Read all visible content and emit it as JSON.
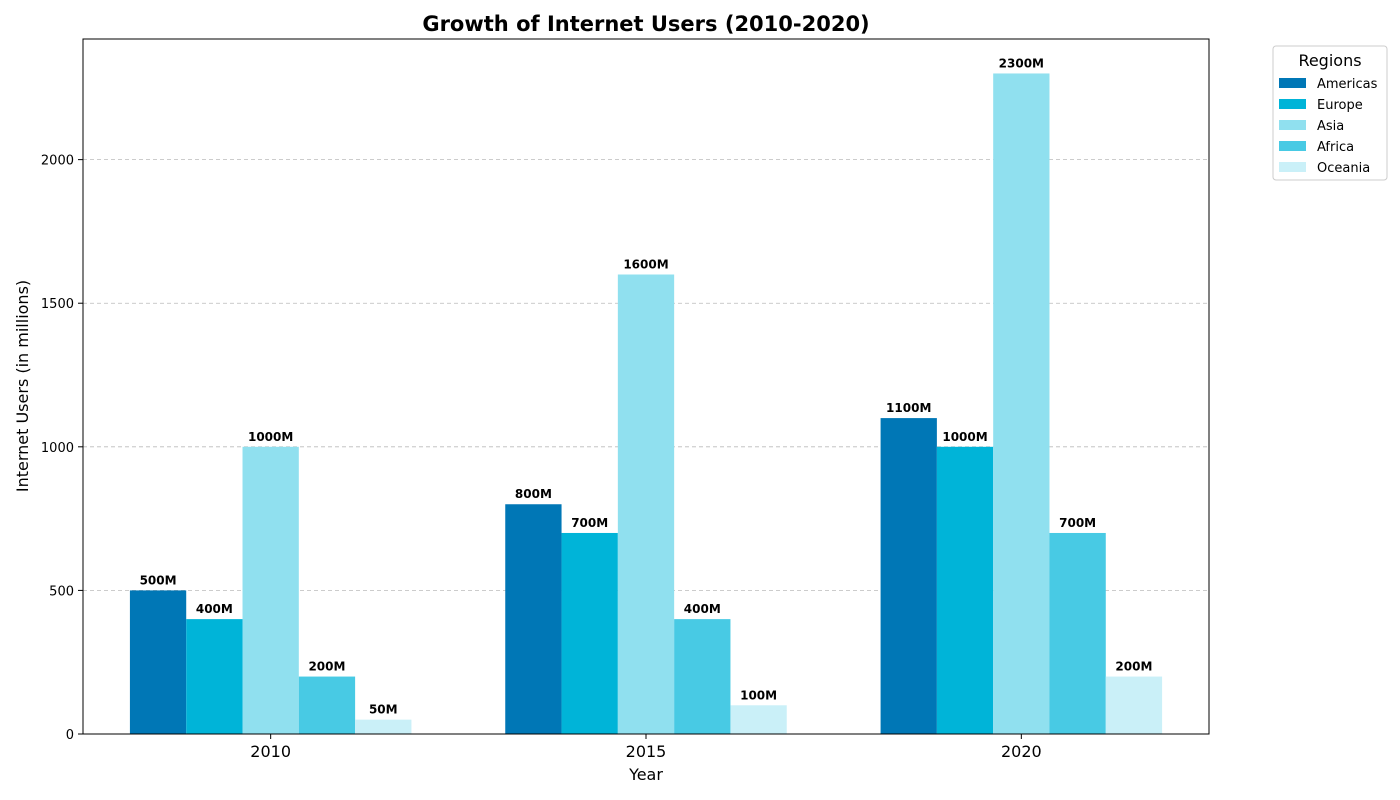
{
  "chart_data": {
    "type": "bar",
    "title": "Growth of Internet Users (2010-2020)",
    "xlabel": "Year",
    "ylabel": "Internet Users (in millions)",
    "categories": [
      "2010",
      "2015",
      "2020"
    ],
    "ylim": [
      0,
      2420
    ],
    "yticks": [
      0,
      500,
      1000,
      1500,
      2000
    ],
    "grid": "y-dashed",
    "legend": {
      "title": "Regions",
      "placement": "outside-top-right"
    },
    "label_suffix": "M",
    "series": [
      {
        "name": "Americas",
        "color": "#0077b6",
        "values": [
          500,
          800,
          1100
        ]
      },
      {
        "name": "Europe",
        "color": "#00b4d8",
        "values": [
          400,
          700,
          1000
        ]
      },
      {
        "name": "Asia",
        "color": "#90e0ef",
        "values": [
          1000,
          1600,
          2300
        ]
      },
      {
        "name": "Africa",
        "color": "#48cae4",
        "values": [
          200,
          400,
          700
        ]
      },
      {
        "name": "Oceania",
        "color": "#caf0f8",
        "values": [
          50,
          100,
          200
        ]
      }
    ]
  }
}
